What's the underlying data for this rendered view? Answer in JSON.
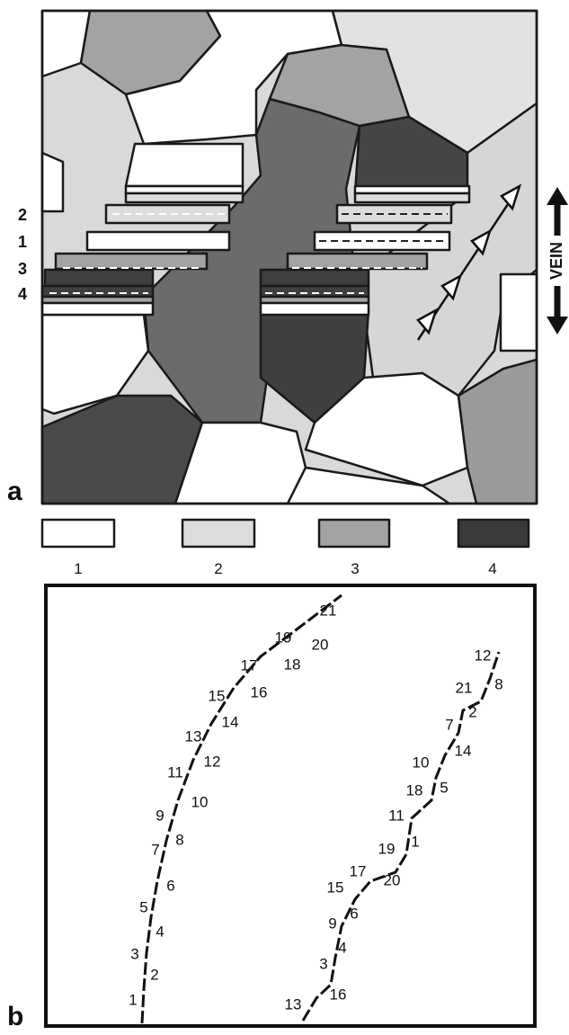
{
  "panel_a": {
    "label": "a",
    "row_labels": [
      "2",
      "1",
      "3",
      "4"
    ],
    "vein_label": "VEIN",
    "legend": [
      "1",
      "2",
      "3",
      "4"
    ]
  },
  "panel_b": {
    "label": "b",
    "left_trace": [
      "1",
      "2",
      "3",
      "4",
      "5",
      "6",
      "7",
      "8",
      "9",
      "10",
      "11",
      "12",
      "13",
      "14",
      "15",
      "16",
      "17",
      "18",
      "19",
      "20",
      "21"
    ],
    "right_trace": [
      "13",
      "16",
      "3",
      "4",
      "9",
      "6",
      "15",
      "17",
      "20",
      "19",
      "1",
      "11",
      "18",
      "5",
      "10",
      "14",
      "7",
      "2",
      "21",
      "8",
      "12"
    ]
  }
}
